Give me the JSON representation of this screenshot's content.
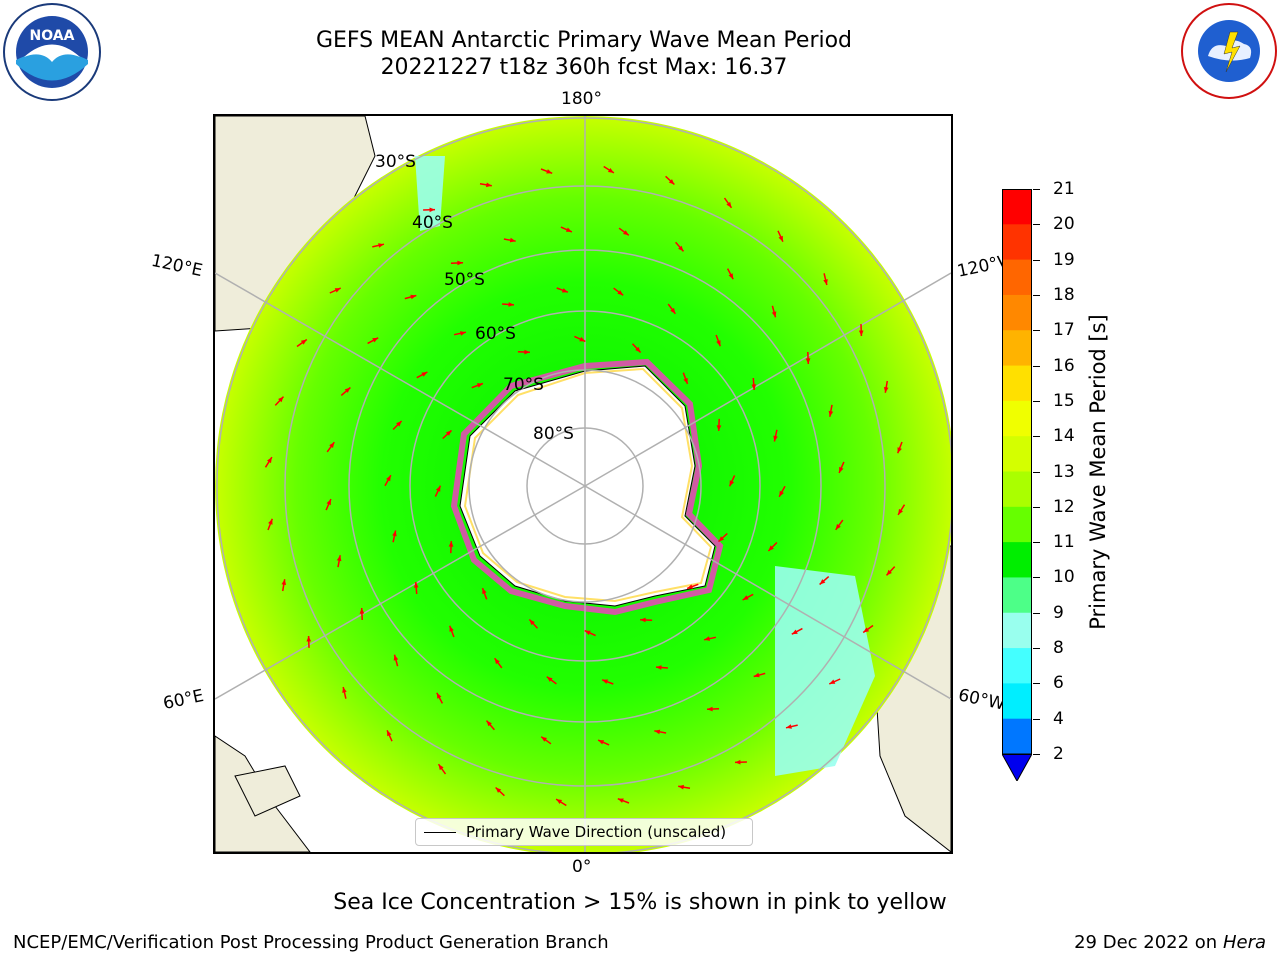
{
  "title": {
    "line1": "GEFS MEAN Antarctic Primary Wave Mean Period",
    "line2": "20221227 t18z 360h fcst   Max: 16.37"
  },
  "map": {
    "projection": "south-polar-stereographic",
    "lon_labels": {
      "top": "180°",
      "bottom": "0°",
      "upper_left": "120°E",
      "upper_right": "120°W",
      "lower_left": "60°E",
      "lower_right": "60°W"
    },
    "lat_labels": [
      "30°S",
      "40°S",
      "50°S",
      "60°S",
      "70°S",
      "80°S"
    ],
    "colors": {
      "land": "#efedda",
      "ice_free_continent": "#ffffff",
      "graticule": "#b0b0b0",
      "arrow": "#ff0000",
      "sea_ice_pink": "#ff33cc",
      "sea_ice_yellow": "#ffe066"
    }
  },
  "legend": {
    "label": "Primary Wave Direction (unscaled)"
  },
  "colorbar": {
    "label": "Primary Wave Mean Period [s]",
    "ticks": [
      "21",
      "20",
      "19",
      "18",
      "17",
      "16",
      "15",
      "14",
      "13",
      "12",
      "11",
      "10",
      "9",
      "8",
      "6",
      "4",
      "2"
    ],
    "colors": [
      "#ff0000",
      "#ff3300",
      "#ff6600",
      "#ff8800",
      "#ffb300",
      "#ffe000",
      "#f0ff00",
      "#d4ff00",
      "#aaff00",
      "#66ff00",
      "#00ee00",
      "#4dff88",
      "#99ffee",
      "#44ffff",
      "#00eeff",
      "#0077ff"
    ],
    "extend_color": "#0000ee"
  },
  "footer": {
    "note": "Sea Ice Concentration > 15% is shown in pink to yellow",
    "credit_left": "NCEP/EMC/Verification Post Processing Product Generation Branch",
    "date": "29 Dec 2022 on",
    "host": "Hera"
  },
  "logos": {
    "left": "noaa-logo",
    "right": "nws-logo"
  }
}
